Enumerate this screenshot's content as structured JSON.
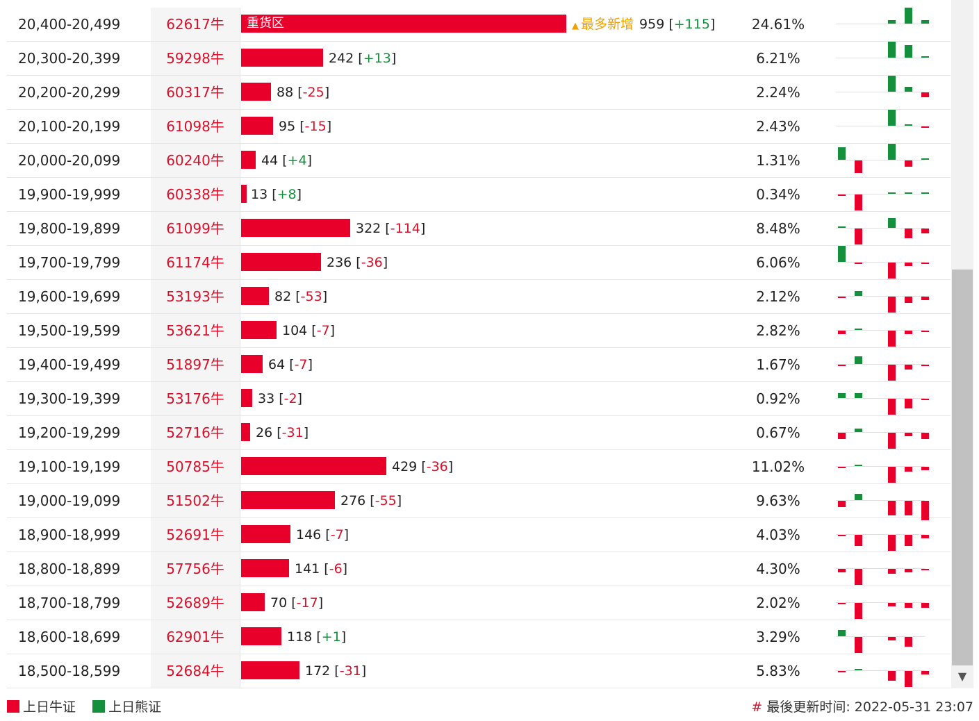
{
  "colors": {
    "bull": "#e8002b",
    "bear": "#14903c",
    "highlight": "#f0a000"
  },
  "max_count": 959,
  "rows": [
    {
      "range": "20,400-20,499",
      "code": "62617牛",
      "bar_label": "重货区",
      "badge": "最多新增",
      "count": "959",
      "change": "+115",
      "pct": "24.61%",
      "spark": [
        0,
        0,
        0,
        -2,
        -10,
        -2
      ]
    },
    {
      "range": "20,300-20,399",
      "code": "59298牛",
      "count": "242",
      "change": "+13",
      "pct": "6.21%",
      "spark": [
        0,
        0,
        0,
        -10,
        -8,
        -1
      ]
    },
    {
      "range": "20,200-20,299",
      "code": "60317牛",
      "count": "88",
      "change": "-25",
      "pct": "2.24%",
      "spark": [
        0,
        0,
        0,
        -10,
        -3,
        3
      ]
    },
    {
      "range": "20,100-20,199",
      "code": "61098牛",
      "count": "95",
      "change": "-15",
      "pct": "2.43%",
      "spark": [
        0,
        0,
        0,
        -10,
        -1,
        1
      ]
    },
    {
      "range": "20,000-20,099",
      "code": "60240牛",
      "count": "44",
      "change": "+4",
      "pct": "1.31%",
      "spark": [
        -8,
        8,
        0,
        -10,
        4,
        -1
      ]
    },
    {
      "range": "19,900-19,999",
      "code": "60338牛",
      "count": "13",
      "change": "+8",
      "pct": "0.34%",
      "spark": [
        1,
        10,
        0,
        -1,
        -1,
        -1
      ]
    },
    {
      "range": "19,800-19,899",
      "code": "61099牛",
      "count": "322",
      "change": "-114",
      "pct": "8.48%",
      "spark": [
        -1,
        10,
        0,
        -6,
        6,
        3
      ]
    },
    {
      "range": "19,700-19,799",
      "code": "61174牛",
      "count": "236",
      "change": "-36",
      "pct": "6.06%",
      "spark": [
        -10,
        1,
        0,
        10,
        2,
        1
      ]
    },
    {
      "range": "19,600-19,699",
      "code": "53193牛",
      "count": "82",
      "change": "-53",
      "pct": "2.12%",
      "spark": [
        1,
        -3,
        0,
        10,
        4,
        2
      ]
    },
    {
      "range": "19,500-19,599",
      "code": "53621牛",
      "count": "104",
      "change": "-7",
      "pct": "2.82%",
      "spark": [
        2,
        -1,
        0,
        10,
        2,
        1
      ]
    },
    {
      "range": "19,400-19,499",
      "code": "51897牛",
      "count": "64",
      "change": "-7",
      "pct": "1.67%",
      "spark": [
        1,
        -5,
        0,
        10,
        3,
        1
      ]
    },
    {
      "range": "19,300-19,399",
      "code": "53176牛",
      "count": "33",
      "change": "-2",
      "pct": "0.92%",
      "spark": [
        -3,
        -3,
        0,
        10,
        6,
        1
      ]
    },
    {
      "range": "19,200-19,299",
      "code": "52716牛",
      "count": "26",
      "change": "-31",
      "pct": "0.67%",
      "spark": [
        4,
        -2,
        0,
        10,
        2,
        4
      ]
    },
    {
      "range": "19,100-19,199",
      "code": "50785牛",
      "count": "429",
      "change": "-36",
      "pct": "11.02%",
      "spark": [
        1,
        -1,
        0,
        10,
        3,
        2
      ]
    },
    {
      "range": "19,000-19,099",
      "code": "51502牛",
      "count": "276",
      "change": "-55",
      "pct": "9.63%",
      "spark": [
        4,
        -4,
        0,
        9,
        9,
        12
      ]
    },
    {
      "range": "18,900-18,999",
      "code": "52691牛",
      "count": "146",
      "change": "-7",
      "pct": "4.03%",
      "spark": [
        1,
        7,
        0,
        10,
        7,
        2
      ]
    },
    {
      "range": "18,800-18,899",
      "code": "57756牛",
      "count": "141",
      "change": "-6",
      "pct": "4.30%",
      "spark": [
        2,
        10,
        0,
        3,
        2,
        1
      ]
    },
    {
      "range": "18,700-18,799",
      "code": "52689牛",
      "count": "70",
      "change": "-17",
      "pct": "2.02%",
      "spark": [
        1,
        10,
        0,
        2,
        3,
        3
      ]
    },
    {
      "range": "18,600-18,699",
      "code": "62901牛",
      "count": "118",
      "change": "+1",
      "pct": "3.29%",
      "spark": [
        -4,
        10,
        0,
        2,
        6,
        0
      ]
    },
    {
      "range": "18,500-18,599",
      "code": "52684牛",
      "count": "172",
      "change": "-31",
      "pct": "5.83%",
      "spark": [
        1,
        -1,
        0,
        6,
        10,
        2
      ]
    }
  ],
  "legend": {
    "bull": "上日牛证",
    "bear": "上日熊证"
  },
  "footer": {
    "hash": "#",
    "update_label": "最後更新时间: 2022-05-31 23:07"
  },
  "icons": {
    "scroll_down": "triangle-down-icon"
  }
}
